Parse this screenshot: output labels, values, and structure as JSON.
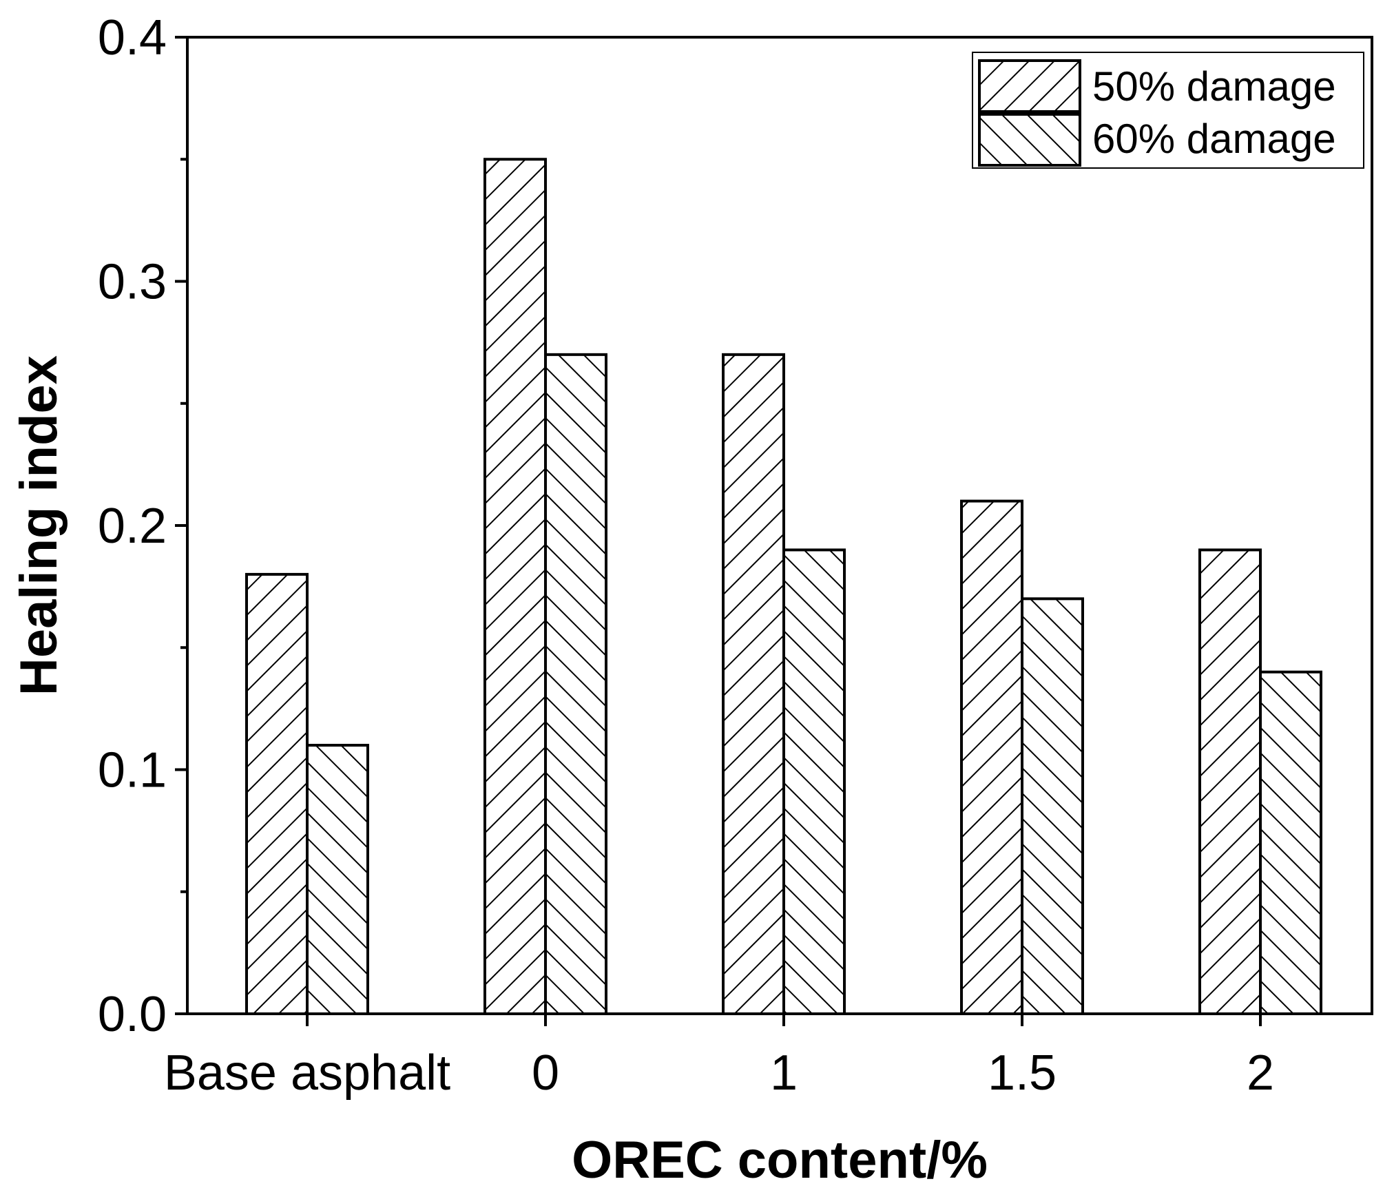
{
  "chart_data": {
    "type": "bar",
    "title": "",
    "xlabel": "OREC content/%",
    "ylabel": "Healing index",
    "categories": [
      "Base asphalt",
      "0",
      "1",
      "1.5",
      "2"
    ],
    "series": [
      {
        "name": "50% damage",
        "values": [
          0.18,
          0.35,
          0.27,
          0.21,
          0.19
        ],
        "hatch": "forward"
      },
      {
        "name": "60% damage",
        "values": [
          0.11,
          0.27,
          0.19,
          0.17,
          0.14
        ],
        "hatch": "backward"
      }
    ],
    "ylim": [
      0,
      0.4
    ],
    "yticks": [
      "0.0",
      "0.1",
      "0.2",
      "0.3",
      "0.4"
    ],
    "legend_position": "top-right",
    "grid": false,
    "colors": {
      "stroke": "#000000",
      "fill": "#ffffff"
    }
  }
}
